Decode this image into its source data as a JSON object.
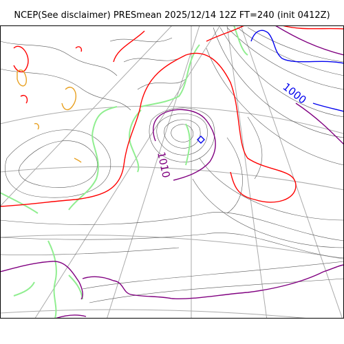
{
  "title": "NCEP(See disclaimer) PRESmean 2025/12/14 12Z FT=240 (init 0412Z)",
  "map": {
    "variable": "PRESmean",
    "projection": "polar stereographic",
    "contour_labels": [
      {
        "text": "1000",
        "color": "#0000ee"
      },
      {
        "text": "1010",
        "color": "#800080"
      }
    ],
    "colors": {
      "isobar": "#555555",
      "graticule": "#aaaaaa",
      "coastline": "#90ee90",
      "isobar_1020": "#ff0000",
      "isobar_1010": "#800080",
      "isobar_1000": "#0000ee",
      "isobar_1030": "#e8a020"
    }
  }
}
